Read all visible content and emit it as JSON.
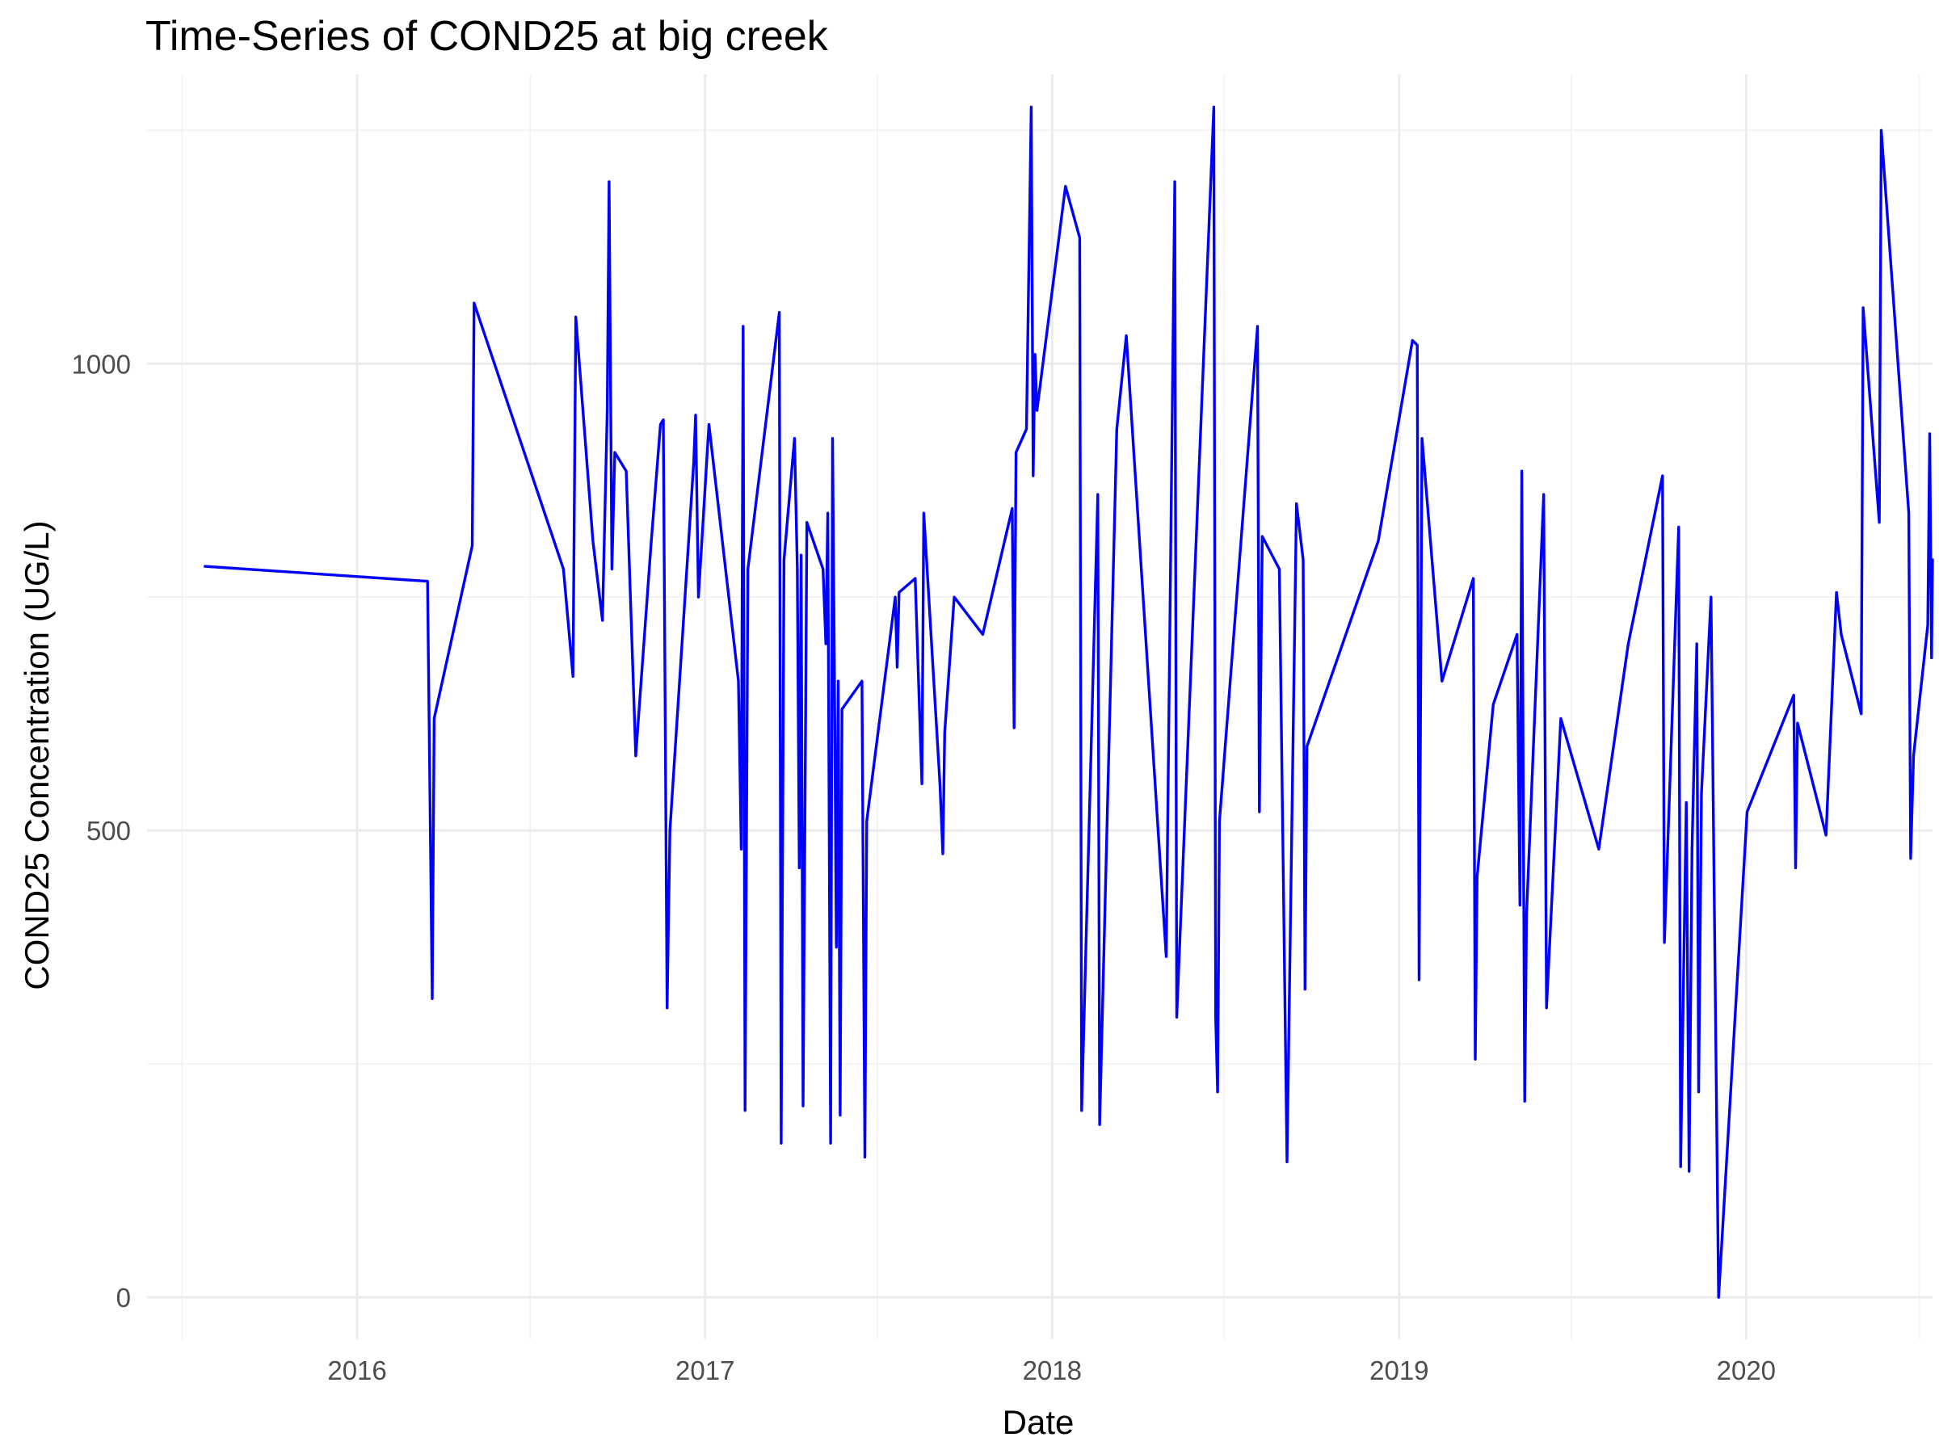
{
  "chart_data": {
    "type": "line",
    "title": "Time-Series of COND25 at big creek",
    "xlabel": "Date",
    "ylabel": "COND25 Concentration (UG/L)",
    "x_ticks": [
      "2016",
      "2017",
      "2018",
      "2019",
      "2020"
    ],
    "y_ticks": [
      0,
      500,
      1000
    ],
    "xlim": [
      "2015-05-25",
      "2020-07-15"
    ],
    "ylim": [
      -45,
      1310
    ],
    "grid": true,
    "legend": "none",
    "line_color": "#0000ff",
    "series": [
      {
        "points": [
          [
            "2015-07-25",
            783
          ],
          [
            "2016-03-15",
            767
          ],
          [
            "2016-03-20",
            320
          ],
          [
            "2016-03-22",
            620
          ],
          [
            "2016-05-01",
            805
          ],
          [
            "2016-05-03",
            1065
          ],
          [
            "2016-08-05",
            780
          ],
          [
            "2016-08-15",
            665
          ],
          [
            "2016-08-18",
            1050
          ],
          [
            "2016-09-05",
            810
          ],
          [
            "2016-09-15",
            725
          ],
          [
            "2016-09-20",
            950
          ],
          [
            "2016-09-22",
            1195
          ],
          [
            "2016-09-25",
            780
          ],
          [
            "2016-09-28",
            905
          ],
          [
            "2016-10-10",
            885
          ],
          [
            "2016-10-20",
            580
          ],
          [
            "2016-11-05",
            805
          ],
          [
            "2016-11-15",
            935
          ],
          [
            "2016-11-18",
            940
          ],
          [
            "2016-11-22",
            310
          ],
          [
            "2016-11-25",
            500
          ],
          [
            "2016-12-20",
            895
          ],
          [
            "2016-12-22",
            945
          ],
          [
            "2016-12-25",
            750
          ],
          [
            "2017-01-05",
            935
          ],
          [
            "2017-02-05",
            660
          ],
          [
            "2017-02-08",
            480
          ],
          [
            "2017-02-10",
            1040
          ],
          [
            "2017-02-12",
            200
          ],
          [
            "2017-02-15",
            780
          ],
          [
            "2017-03-20",
            1055
          ],
          [
            "2017-03-22",
            165
          ],
          [
            "2017-03-25",
            790
          ],
          [
            "2017-04-05",
            920
          ],
          [
            "2017-04-08",
            780
          ],
          [
            "2017-04-10",
            460
          ],
          [
            "2017-04-12",
            795
          ],
          [
            "2017-04-14",
            205
          ],
          [
            "2017-04-18",
            830
          ],
          [
            "2017-05-05",
            780
          ],
          [
            "2017-05-08",
            700
          ],
          [
            "2017-05-10",
            840
          ],
          [
            "2017-05-13",
            165
          ],
          [
            "2017-05-15",
            920
          ],
          [
            "2017-05-17",
            670
          ],
          [
            "2017-05-19",
            375
          ],
          [
            "2017-05-21",
            660
          ],
          [
            "2017-05-23",
            195
          ],
          [
            "2017-05-25",
            630
          ],
          [
            "2017-06-15",
            660
          ],
          [
            "2017-06-18",
            150
          ],
          [
            "2017-06-20",
            510
          ],
          [
            "2017-07-20",
            750
          ],
          [
            "2017-07-22",
            675
          ],
          [
            "2017-07-24",
            755
          ],
          [
            "2017-08-10",
            770
          ],
          [
            "2017-08-17",
            550
          ],
          [
            "2017-08-19",
            840
          ],
          [
            "2017-09-05",
            550
          ],
          [
            "2017-09-08",
            475
          ],
          [
            "2017-09-10",
            605
          ],
          [
            "2017-09-20",
            750
          ],
          [
            "2017-10-20",
            710
          ],
          [
            "2017-11-20",
            845
          ],
          [
            "2017-11-22",
            610
          ],
          [
            "2017-11-24",
            905
          ],
          [
            "2017-12-05",
            930
          ],
          [
            "2017-12-10",
            1275
          ],
          [
            "2017-12-12",
            880
          ],
          [
            "2017-12-14",
            1010
          ],
          [
            "2017-12-16",
            950
          ],
          [
            "2018-01-15",
            1190
          ],
          [
            "2018-01-30",
            1135
          ],
          [
            "2018-02-01",
            200
          ],
          [
            "2018-02-18",
            860
          ],
          [
            "2018-02-20",
            185
          ],
          [
            "2018-03-10",
            930
          ],
          [
            "2018-03-20",
            1030
          ],
          [
            "2018-05-01",
            365
          ],
          [
            "2018-05-10",
            1195
          ],
          [
            "2018-05-12",
            300
          ],
          [
            "2018-06-20",
            1275
          ],
          [
            "2018-06-22",
            300
          ],
          [
            "2018-06-24",
            220
          ],
          [
            "2018-06-26",
            510
          ],
          [
            "2018-08-05",
            1040
          ],
          [
            "2018-08-07",
            520
          ],
          [
            "2018-08-10",
            815
          ],
          [
            "2018-08-28",
            780
          ],
          [
            "2018-09-05",
            145
          ],
          [
            "2018-09-15",
            850
          ],
          [
            "2018-09-22",
            790
          ],
          [
            "2018-09-24",
            330
          ],
          [
            "2018-09-26",
            590
          ],
          [
            "2018-12-10",
            810
          ],
          [
            "2019-01-15",
            1025
          ],
          [
            "2019-01-20",
            1020
          ],
          [
            "2019-01-22",
            340
          ],
          [
            "2019-01-25",
            920
          ],
          [
            "2019-02-15",
            660
          ],
          [
            "2019-03-20",
            770
          ],
          [
            "2019-03-22",
            255
          ],
          [
            "2019-03-24",
            450
          ],
          [
            "2019-04-10",
            635
          ],
          [
            "2019-05-05",
            710
          ],
          [
            "2019-05-08",
            420
          ],
          [
            "2019-05-10",
            885
          ],
          [
            "2019-05-13",
            210
          ],
          [
            "2019-05-15",
            410
          ],
          [
            "2019-06-02",
            860
          ],
          [
            "2019-06-05",
            310
          ],
          [
            "2019-06-20",
            620
          ],
          [
            "2019-07-30",
            480
          ],
          [
            "2019-08-30",
            700
          ],
          [
            "2019-10-05",
            880
          ],
          [
            "2019-10-07",
            380
          ],
          [
            "2019-10-22",
            825
          ],
          [
            "2019-10-24",
            140
          ],
          [
            "2019-10-30",
            530
          ],
          [
            "2019-11-02",
            135
          ],
          [
            "2019-11-05",
            480
          ],
          [
            "2019-11-10",
            700
          ],
          [
            "2019-11-12",
            220
          ],
          [
            "2019-11-15",
            540
          ],
          [
            "2019-11-25",
            750
          ],
          [
            "2019-12-03",
            0
          ],
          [
            "2020-01-02",
            520
          ],
          [
            "2020-02-20",
            645
          ],
          [
            "2020-02-22",
            460
          ],
          [
            "2020-02-24",
            615
          ],
          [
            "2020-03-25",
            495
          ],
          [
            "2020-04-05",
            755
          ],
          [
            "2020-04-10",
            710
          ],
          [
            "2020-05-01",
            625
          ],
          [
            "2020-05-03",
            1060
          ],
          [
            "2020-05-20",
            830
          ],
          [
            "2020-05-22",
            1250
          ],
          [
            "2020-06-20",
            840
          ],
          [
            "2020-06-22",
            470
          ],
          [
            "2020-06-25",
            580
          ],
          [
            "2020-07-10",
            720
          ],
          [
            "2020-07-12",
            925
          ],
          [
            "2020-07-14",
            685
          ],
          [
            "2020-07-15",
            790
          ]
        ]
      }
    ]
  }
}
